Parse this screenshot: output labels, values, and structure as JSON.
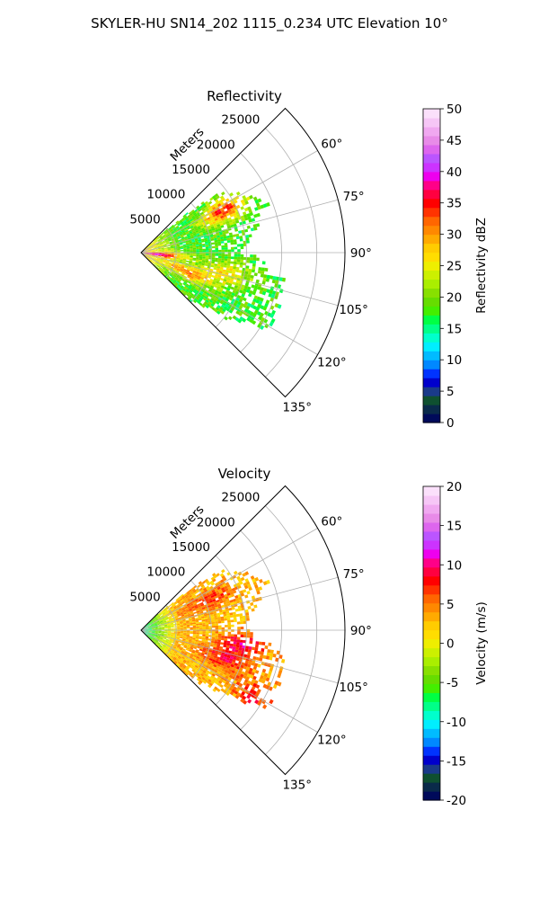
{
  "figure": {
    "title": "SKYLER-HU  SN14_202  1115_0.234 UTC Elevation 10°"
  },
  "chart_data": [
    {
      "type": "heatmap",
      "subtype": "polar-sector",
      "title": "Reflectivity",
      "radial_label": "Meters",
      "radial_ticks": [
        "5000",
        "10000",
        "15000",
        "20000",
        "25000"
      ],
      "radial_tick_values": [
        5000,
        10000,
        15000,
        20000,
        25000
      ],
      "r_max": 29000,
      "angle_range_deg": [
        45,
        135
      ],
      "angle_ticks": [
        "60°",
        "75°",
        "90°",
        "105°",
        "120°",
        "135°"
      ],
      "angle_tick_values": [
        60,
        75,
        90,
        105,
        120,
        135
      ],
      "grid": true,
      "colorbar": {
        "label": "Reflectivity dBZ",
        "range": [
          0,
          50
        ],
        "ticks": [
          "0",
          "5",
          "10",
          "15",
          "20",
          "25",
          "30",
          "35",
          "40",
          "45",
          "50"
        ],
        "colors": [
          "#000a5a",
          "#0a2a4a",
          "#0f5030",
          "#1a3a8a",
          "#0000cc",
          "#0033ff",
          "#0088ff",
          "#00bbff",
          "#00eeff",
          "#00ffcc",
          "#00ff88",
          "#00ff44",
          "#44ee00",
          "#66dd00",
          "#88e000",
          "#aaee00",
          "#ccf000",
          "#eeee00",
          "#ffdd00",
          "#ffcc00",
          "#ffaa00",
          "#ff8800",
          "#ff6600",
          "#ff3300",
          "#ff0000",
          "#ff0040",
          "#ff0088",
          "#ee00ee",
          "#cc33ff",
          "#bb55ff",
          "#dd66ee",
          "#e88be8",
          "#f0a8f0",
          "#f6c6f6",
          "#fbe0fb"
        ],
        "series_data_summary": "Echo coverage between ~52° and ~134°, out to ~22000 m; mostly 15–22 dBZ (green) with 25–35 dBZ (yellow/orange, red cores) near radar and along the 60°–105° sector."
      },
      "field": {
        "range_m": [
          0,
          22000
        ],
        "typical_value": 18,
        "near_radar_value": 28,
        "cores": [
          {
            "angle": 62,
            "range": 13000,
            "value": 34
          },
          {
            "angle": 95,
            "range": 2500,
            "value": 33
          },
          {
            "angle": 112,
            "range": 7000,
            "value": 31
          },
          {
            "angle": 103,
            "range": 12000,
            "value": 26
          }
        ]
      }
    },
    {
      "type": "heatmap",
      "subtype": "polar-sector",
      "title": "Velocity",
      "radial_label": "Meters",
      "radial_ticks": [
        "5000",
        "10000",
        "15000",
        "20000",
        "25000"
      ],
      "radial_tick_values": [
        5000,
        10000,
        15000,
        20000,
        25000
      ],
      "r_max": 29000,
      "angle_range_deg": [
        45,
        135
      ],
      "angle_ticks": [
        "60°",
        "75°",
        "90°",
        "105°",
        "120°",
        "135°"
      ],
      "angle_tick_values": [
        60,
        75,
        90,
        105,
        120,
        135
      ],
      "grid": true,
      "colorbar": {
        "label": "Velocity (m/s)",
        "range": [
          -20,
          20
        ],
        "ticks": [
          "-20",
          "-15",
          "-10",
          "-5",
          "0",
          "5",
          "10",
          "15",
          "20"
        ],
        "colors": [
          "#000a5a",
          "#0a2a4a",
          "#0f5030",
          "#1a3a8a",
          "#0000cc",
          "#0033ff",
          "#0088ff",
          "#00bbff",
          "#00eeff",
          "#00ffcc",
          "#00ff88",
          "#00ff44",
          "#44ee00",
          "#66dd00",
          "#88e000",
          "#aaee00",
          "#ccf000",
          "#eeee00",
          "#ffdd00",
          "#ffcc00",
          "#ffaa00",
          "#ff8800",
          "#ff6600",
          "#ff3300",
          "#ff0000",
          "#ff0040",
          "#ff0088",
          "#ee00ee",
          "#cc33ff",
          "#bb55ff",
          "#dd66ee",
          "#e88be8",
          "#f0a8f0",
          "#f6c6f6",
          "#fbe0fb"
        ]
      },
      "field": {
        "range_m": [
          0,
          22000
        ],
        "near_radar_value": -9,
        "typical_value": 3,
        "cores": [
          {
            "angle": 97,
            "range": 14500,
            "value": 9
          },
          {
            "angle": 108,
            "range": 12000,
            "value": 8
          },
          {
            "angle": 65,
            "range": 10000,
            "value": 7
          },
          {
            "angle": 120,
            "range": 19000,
            "value": 8
          }
        ]
      }
    }
  ]
}
